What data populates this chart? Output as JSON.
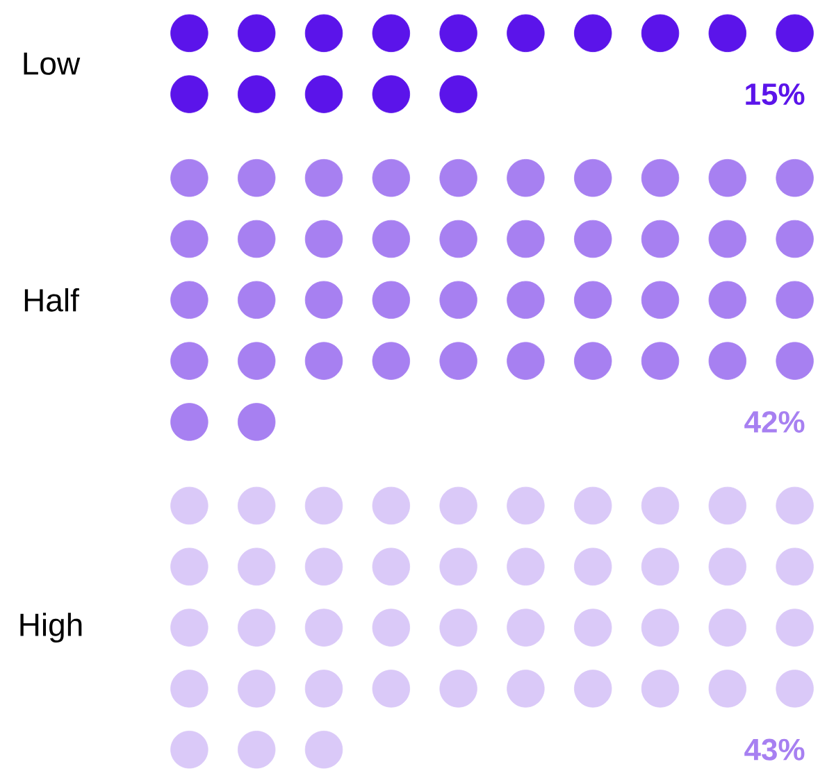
{
  "chart_data": {
    "type": "other",
    "categories": [
      "Low",
      "Half",
      "High"
    ],
    "values": [
      15,
      42,
      43
    ],
    "colors": [
      "#5b14ea",
      "#a780f1",
      "#dac9f8"
    ],
    "value_labels": [
      "15%",
      "42%",
      "43%"
    ]
  }
}
